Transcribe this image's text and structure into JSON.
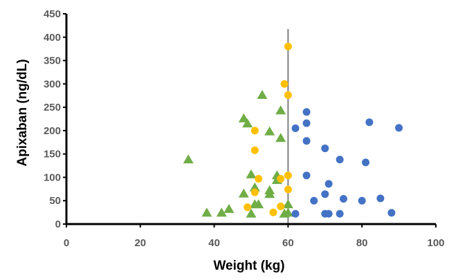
{
  "chart_data": {
    "type": "scatter",
    "title": "",
    "xlabel": "Weight (kg)",
    "ylabel": "Apixaban (ng/dL)",
    "xlim": [
      0,
      100
    ],
    "ylim": [
      0,
      450
    ],
    "x_ticks": [
      "0",
      "20",
      "40",
      "60",
      "80",
      "100"
    ],
    "y_ticks": [
      "0",
      "50",
      "100",
      "150",
      "200",
      "250",
      "300",
      "350",
      "400",
      "450"
    ],
    "grid": false,
    "legend": "none",
    "reference_line": {
      "orientation": "vertical",
      "x": 60,
      "color": "#808080"
    },
    "series": [
      {
        "marker": "triangle",
        "color": "#70AD47",
        "points": [
          [
            33,
            138
          ],
          [
            38,
            24
          ],
          [
            42,
            24
          ],
          [
            44,
            32
          ],
          [
            48,
            65
          ],
          [
            48,
            226
          ],
          [
            49,
            215
          ],
          [
            50,
            106
          ],
          [
            50,
            22
          ],
          [
            51,
            42
          ],
          [
            51,
            78
          ],
          [
            52,
            42
          ],
          [
            53,
            276
          ],
          [
            55,
            198
          ],
          [
            55,
            64
          ],
          [
            55,
            72
          ],
          [
            57,
            104
          ],
          [
            57,
            94
          ],
          [
            58,
            243
          ],
          [
            58,
            184
          ],
          [
            59,
            22
          ],
          [
            60,
            24
          ],
          [
            60,
            42
          ]
        ]
      },
      {
        "marker": "circle",
        "color": "#FFC000",
        "points": [
          [
            49,
            36
          ],
          [
            51,
            200
          ],
          [
            51,
            158
          ],
          [
            51,
            68
          ],
          [
            52,
            97
          ],
          [
            56,
            25
          ],
          [
            58,
            97
          ],
          [
            58,
            38
          ],
          [
            59,
            300
          ],
          [
            60,
            380
          ],
          [
            60,
            276
          ],
          [
            60,
            104
          ],
          [
            60,
            74
          ]
        ]
      },
      {
        "marker": "circle",
        "color": "#4472C4",
        "points": [
          [
            62,
            22
          ],
          [
            62,
            205
          ],
          [
            65,
            240
          ],
          [
            65,
            216
          ],
          [
            65,
            178
          ],
          [
            65,
            104
          ],
          [
            67,
            50
          ],
          [
            70,
            162
          ],
          [
            70,
            64
          ],
          [
            70,
            22
          ],
          [
            71,
            86
          ],
          [
            71,
            22
          ],
          [
            74,
            22
          ],
          [
            74,
            138
          ],
          [
            75,
            54
          ],
          [
            80,
            50
          ],
          [
            81,
            132
          ],
          [
            82,
            218
          ],
          [
            85,
            55
          ],
          [
            88,
            24
          ],
          [
            90,
            206
          ]
        ]
      }
    ]
  }
}
